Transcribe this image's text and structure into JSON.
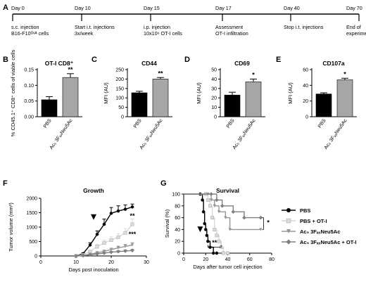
{
  "figure": {
    "panel_letters": [
      "A",
      "B",
      "C",
      "D",
      "E",
      "F",
      "G"
    ]
  },
  "timeline": {
    "events": [
      {
        "day": 0,
        "label": "Day 0",
        "desc": [
          "s.c. injection",
          "B16-F10ᴼᵛᴬ cells"
        ]
      },
      {
        "day": 10,
        "label": "Day 10",
        "desc": [
          "Start i.t. injections",
          "3x/week"
        ]
      },
      {
        "day": 15,
        "label": "Day 15",
        "desc": [
          "i.p. injection",
          "10x10⁶ OT-I cells"
        ]
      },
      {
        "day": 17,
        "label": "Day 17",
        "desc": [
          "Assessment",
          "OT-I infiltration"
        ]
      },
      {
        "day": 40,
        "label": "Day 40",
        "desc": [
          "Stop i.t. injections"
        ]
      },
      {
        "day": 70,
        "label": "Day 70",
        "desc": [
          "End of",
          "experiment"
        ]
      }
    ]
  },
  "chart_data": [
    {
      "type": "bar",
      "panel": "B",
      "title": "OT-I CD8⁺",
      "ylabel": "% CD45.1⁺ CD8⁺ cells of viable cells",
      "categories": [
        "PBS",
        "Ac₅ 3FₐₓNeu5Ac"
      ],
      "values": [
        0.054,
        0.125
      ],
      "errors": [
        0.01,
        0.012
      ],
      "ylim": [
        0,
        0.15
      ],
      "yticks": [
        "0.00",
        "0.05",
        "0.10",
        "0.15"
      ],
      "significance": "**",
      "colors": [
        "#000000",
        "#a6a6a6"
      ]
    },
    {
      "type": "bar",
      "panel": "C",
      "title": "CD44",
      "ylabel": "MFI (AU)",
      "categories": [
        "PBS",
        "Ac₅ 3FₐₓNeu5Ac"
      ],
      "values": [
        127,
        200
      ],
      "errors": [
        8,
        8
      ],
      "ylim": [
        0,
        250
      ],
      "yticks": [
        "0",
        "50",
        "100",
        "150",
        "200",
        "250"
      ],
      "significance": "**",
      "colors": [
        "#000000",
        "#a6a6a6"
      ]
    },
    {
      "type": "bar",
      "panel": "D",
      "title": "CD69",
      "ylabel": "MFI (AU)",
      "categories": [
        "PBS",
        "Ac₅ 3FₐₓNeu5Ac"
      ],
      "values": [
        23,
        37
      ],
      "errors": [
        3,
        3
      ],
      "ylim": [
        0,
        50
      ],
      "yticks": [
        "0",
        "10",
        "20",
        "30",
        "40",
        "50"
      ],
      "significance": "*",
      "colors": [
        "#000000",
        "#a6a6a6"
      ]
    },
    {
      "type": "bar",
      "panel": "E",
      "title": "CD107a",
      "ylabel": "MFI (AU)",
      "categories": [
        "PBS",
        "Ac₅ 3FₐₓNeu5Ac"
      ],
      "values": [
        29,
        47
      ],
      "errors": [
        1.5,
        2
      ],
      "ylim": [
        0,
        60
      ],
      "yticks": [
        "0",
        "20",
        "40",
        "60"
      ],
      "significance": "*",
      "colors": [
        "#000000",
        "#a6a6a6"
      ]
    },
    {
      "type": "line",
      "panel": "F",
      "title": "Growth",
      "xlabel": "Days post inoculation",
      "ylabel": "Tumor volume (mm³)",
      "xlim": [
        0,
        30
      ],
      "ylim": [
        0,
        2000
      ],
      "xticks": [
        "0",
        "10",
        "20",
        "30"
      ],
      "yticks": [
        "0",
        "500",
        "1000",
        "1500",
        "2000"
      ],
      "arrow_day": 15,
      "significance": [
        "**",
        "***"
      ],
      "x": [
        10,
        12,
        14,
        16,
        18,
        20,
        22,
        24,
        26
      ],
      "series": [
        {
          "color": "#000000",
          "marker": "circle",
          "values": [
            0,
            80,
            380,
            750,
            1100,
            1480,
            1560,
            1620,
            1700
          ],
          "errors": [
            0,
            30,
            80,
            120,
            180,
            200,
            180,
            150,
            100
          ]
        },
        {
          "color": "#d9d9d9",
          "marker": "square",
          "values": [
            0,
            40,
            150,
            320,
            450,
            550,
            650,
            800,
            1100
          ],
          "errors": [
            0,
            20,
            50,
            80,
            100,
            110,
            120,
            150,
            180
          ]
        },
        {
          "color": "#969696",
          "marker": "triangle",
          "values": [
            0,
            20,
            60,
            110,
            160,
            220,
            280,
            330,
            380
          ],
          "errors": [
            0,
            10,
            20,
            30,
            40,
            50,
            60,
            70,
            80
          ]
        },
        {
          "color": "#7f7f7f",
          "marker": "diamond",
          "values": [
            0,
            10,
            40,
            70,
            100,
            130,
            150,
            170,
            190
          ],
          "errors": [
            0,
            5,
            15,
            20,
            25,
            30,
            35,
            40,
            40
          ]
        }
      ]
    },
    {
      "type": "line",
      "panel": "G",
      "title": "Survival",
      "xlabel": "Days after tumor cell injection",
      "ylabel": "Survival (%)",
      "xlim": [
        0,
        80
      ],
      "ylim": [
        0,
        100
      ],
      "xticks": [
        "0",
        "20",
        "40",
        "60",
        "80"
      ],
      "yticks": [
        "0",
        "20",
        "40",
        "60",
        "80",
        "100"
      ],
      "arrow_day": 15,
      "significance": [
        "**",
        "*"
      ],
      "series": [
        {
          "name": "PBS",
          "color": "#000000",
          "marker": "circle",
          "steps": [
            [
              0,
              100
            ],
            [
              15,
              100
            ],
            [
              17,
              90
            ],
            [
              18,
              70
            ],
            [
              19,
              50
            ],
            [
              20,
              40
            ],
            [
              21,
              30
            ],
            [
              22,
              20
            ],
            [
              24,
              10
            ],
            [
              27,
              0
            ],
            [
              30,
              0
            ]
          ]
        },
        {
          "name": "PBS + OT-I",
          "color": "#d9d9d9",
          "marker": "square",
          "steps": [
            [
              0,
              100
            ],
            [
              20,
              100
            ],
            [
              22,
              90
            ],
            [
              24,
              80
            ],
            [
              26,
              60
            ],
            [
              28,
              40
            ],
            [
              30,
              30
            ],
            [
              32,
              20
            ],
            [
              34,
              10
            ],
            [
              36,
              0
            ],
            [
              40,
              0
            ]
          ]
        },
        {
          "name": "Ac₅ 3FₐₓNeu5Ac",
          "color": "#969696",
          "marker": "triangle",
          "steps": [
            [
              0,
              100
            ],
            [
              22,
              100
            ],
            [
              25,
              90
            ],
            [
              28,
              80
            ],
            [
              32,
              70
            ],
            [
              38,
              60
            ],
            [
              42,
              40
            ],
            [
              70,
              40
            ]
          ]
        },
        {
          "name": "Ac₅ 3FₐₓNeu5Ac + OT-I",
          "color": "#7f7f7f",
          "marker": "diamond",
          "steps": [
            [
              0,
              100
            ],
            [
              25,
              100
            ],
            [
              30,
              90
            ],
            [
              35,
              80
            ],
            [
              45,
              70
            ],
            [
              55,
              60
            ],
            [
              70,
              60
            ]
          ]
        }
      ]
    }
  ]
}
